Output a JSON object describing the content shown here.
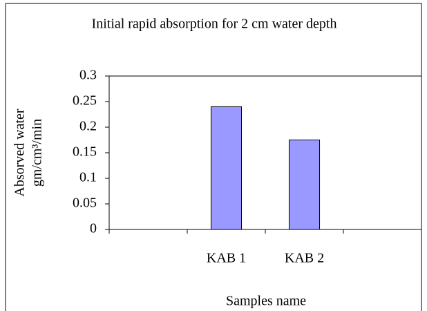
{
  "chart_data": {
    "type": "bar",
    "title": "Initial rapid absorption for 2 cm water depth",
    "x_label": "Samples name",
    "y_label": [
      "Absorved water",
      "gm/cm³/min"
    ],
    "categories": [
      null,
      "KAB 1",
      "KAB 2",
      null
    ],
    "values": [
      null,
      0.24,
      0.175,
      null
    ],
    "color": "#9999ff",
    "ylim": [
      0,
      0.3
    ],
    "yticks": [
      0,
      0.05,
      0.1,
      0.15,
      0.2,
      0.25,
      0.3
    ],
    "grid": false
  }
}
